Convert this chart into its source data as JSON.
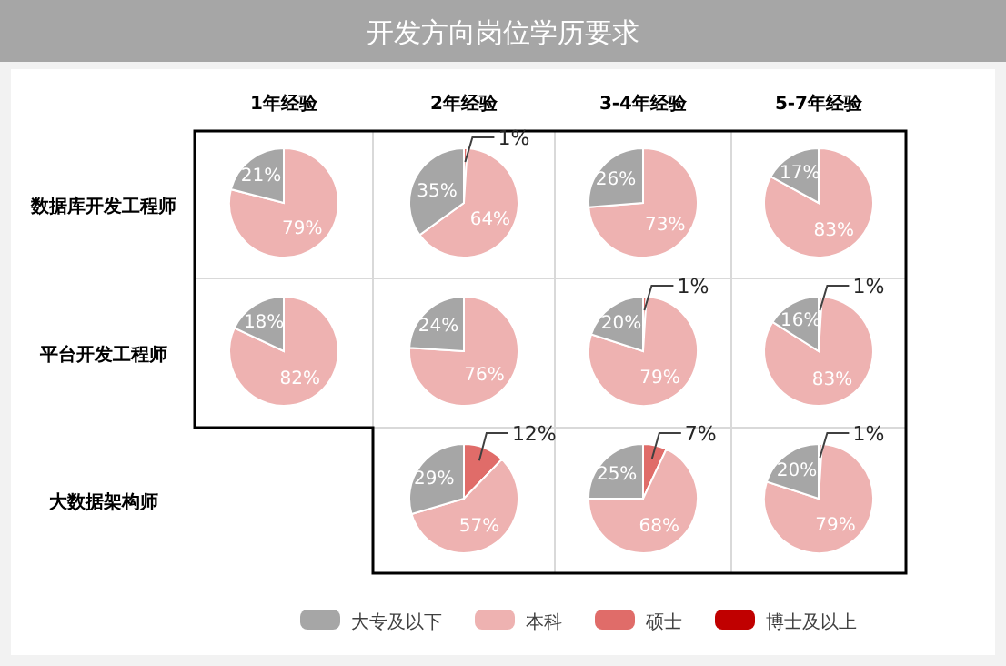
{
  "chart_data": [
    {
      "type": "other",
      "title": "开发方向岗位学历要求",
      "annotations": [
        "1年经验",
        "2年经验",
        "3-4年经验",
        "5-7年经验",
        "数据库开发工程师",
        "平台开发工程师",
        "大数据架构师"
      ]
    },
    {
      "type": "pie",
      "legend": "bottom",
      "categories": [
        "大专及以下",
        "本科",
        "硕士",
        "博士及以上"
      ],
      "values": [
        21,
        79,
        0,
        0
      ],
      "value_labels": [
        "21%",
        "79%",
        null,
        null
      ],
      "colors": [
        "#a6a6a6",
        "#eeb2b1",
        "#e06c69",
        "#c00000"
      ]
    },
    {
      "type": "pie",
      "categories": [
        null,
        null,
        null
      ],
      "values": [
        35,
        64,
        1
      ],
      "value_labels": [
        "35%",
        "64%",
        "1%"
      ],
      "colors": [
        "#a6a6a6",
        "#eeb2b1",
        "#e06c69"
      ]
    },
    {
      "type": "pie",
      "categories": [
        null,
        null
      ],
      "values": [
        26,
        73
      ],
      "value_labels": [
        "26%",
        "73%"
      ],
      "colors": [
        "#a6a6a6",
        "#eeb2b1"
      ]
    },
    {
      "type": "pie",
      "categories": [
        null,
        null
      ],
      "values": [
        17,
        83
      ],
      "value_labels": [
        "17%",
        "83%"
      ],
      "colors": [
        "#a6a6a6",
        "#eeb2b1"
      ]
    },
    {
      "type": "pie",
      "categories": [
        null,
        null
      ],
      "values": [
        18,
        82
      ],
      "value_labels": [
        "18%",
        "82%"
      ],
      "colors": [
        "#a6a6a6",
        "#eeb2b1"
      ]
    },
    {
      "type": "pie",
      "categories": [
        null,
        null
      ],
      "values": [
        24,
        76
      ],
      "value_labels": [
        "24%",
        "76%"
      ],
      "colors": [
        "#a6a6a6",
        "#eeb2b1"
      ]
    },
    {
      "type": "pie",
      "categories": [
        null,
        null,
        null
      ],
      "values": [
        20,
        79,
        1
      ],
      "value_labels": [
        "20%",
        "79%",
        "1%"
      ],
      "colors": [
        "#a6a6a6",
        "#eeb2b1",
        "#e06c69"
      ]
    },
    {
      "type": "pie",
      "categories": [
        null,
        null,
        null
      ],
      "values": [
        16,
        83,
        1
      ],
      "value_labels": [
        "16%",
        "83%",
        "1%"
      ],
      "colors": [
        "#a6a6a6",
        "#eeb2b1",
        "#e06c69"
      ]
    },
    {
      "type": "pie",
      "categories": [
        null,
        null,
        null
      ],
      "values": [
        29,
        57,
        12
      ],
      "value_labels": [
        "29%",
        "57%",
        "12%"
      ],
      "colors": [
        "#a6a6a6",
        "#eeb2b1",
        "#e06c69"
      ]
    },
    {
      "type": "pie",
      "categories": [
        null,
        null,
        null
      ],
      "values": [
        25,
        68,
        7
      ],
      "value_labels": [
        "25%",
        "68%",
        "7%"
      ],
      "colors": [
        "#a6a6a6",
        "#eeb2b1",
        "#e06c69"
      ]
    },
    {
      "type": "pie",
      "categories": [
        null,
        null,
        null
      ],
      "values": [
        20,
        79,
        1
      ],
      "value_labels": [
        "20%",
        "79%",
        "1%"
      ],
      "colors": [
        "#a6a6a6",
        "#eeb2b1",
        "#e06c69"
      ]
    }
  ]
}
